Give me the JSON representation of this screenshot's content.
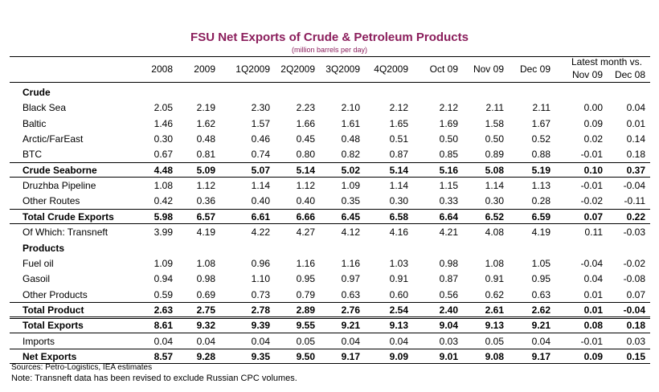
{
  "title": "FSU Net Exports of Crude & Petroleum Products",
  "subtitle": "(million barrels per day)",
  "latest_header": "Latest month vs.",
  "columns": [
    "2008",
    "2009",
    "1Q2009",
    "2Q2009",
    "3Q2009",
    "4Q2009",
    "Oct 09",
    "Nov 09",
    "Dec 09",
    "Nov 09",
    "Dec 08"
  ],
  "rows": [
    {
      "label": "Crude",
      "type": "section",
      "values": []
    },
    {
      "label": "Black Sea",
      "type": "data",
      "values": [
        "2.05",
        "2.19",
        "2.30",
        "2.23",
        "2.10",
        "2.12",
        "2.12",
        "2.11",
        "2.11",
        "0.00",
        "0.04"
      ]
    },
    {
      "label": "Baltic",
      "type": "data",
      "values": [
        "1.46",
        "1.62",
        "1.57",
        "1.66",
        "1.61",
        "1.65",
        "1.69",
        "1.58",
        "1.67",
        "0.09",
        "0.01"
      ]
    },
    {
      "label": "Arctic/FarEast",
      "type": "data",
      "values": [
        "0.30",
        "0.48",
        "0.46",
        "0.45",
        "0.48",
        "0.51",
        "0.50",
        "0.50",
        "0.52",
        "0.02",
        "0.14"
      ]
    },
    {
      "label": "BTC",
      "type": "data",
      "values": [
        "0.67",
        "0.81",
        "0.74",
        "0.80",
        "0.82",
        "0.87",
        "0.85",
        "0.89",
        "0.88",
        "-0.01",
        "0.18"
      ]
    },
    {
      "label": "Crude Seaborne",
      "type": "total",
      "values": [
        "4.48",
        "5.09",
        "5.07",
        "5.14",
        "5.02",
        "5.14",
        "5.16",
        "5.08",
        "5.19",
        "0.10",
        "0.37"
      ]
    },
    {
      "label": "Druzhba Pipeline",
      "type": "data",
      "values": [
        "1.08",
        "1.12",
        "1.14",
        "1.12",
        "1.09",
        "1.14",
        "1.15",
        "1.14",
        "1.13",
        "-0.01",
        "-0.04"
      ]
    },
    {
      "label": "Other Routes",
      "type": "data",
      "values": [
        "0.42",
        "0.36",
        "0.40",
        "0.40",
        "0.35",
        "0.30",
        "0.33",
        "0.30",
        "0.28",
        "-0.02",
        "-0.11"
      ]
    },
    {
      "label": "Total Crude Exports",
      "type": "total",
      "values": [
        "5.98",
        "6.57",
        "6.61",
        "6.66",
        "6.45",
        "6.58",
        "6.64",
        "6.52",
        "6.59",
        "0.07",
        "0.22"
      ]
    },
    {
      "label": "Of Which: Transneft",
      "type": "data",
      "values": [
        "3.99",
        "4.19",
        "4.22",
        "4.27",
        "4.12",
        "4.16",
        "4.21",
        "4.08",
        "4.19",
        "0.11",
        "-0.03"
      ]
    },
    {
      "label": "Products",
      "type": "section",
      "values": []
    },
    {
      "label": "Fuel oil",
      "type": "data",
      "values": [
        "1.09",
        "1.08",
        "0.96",
        "1.16",
        "1.16",
        "1.03",
        "0.98",
        "1.08",
        "1.05",
        "-0.04",
        "-0.02"
      ]
    },
    {
      "label": "Gasoil",
      "type": "data",
      "values": [
        "0.94",
        "0.98",
        "1.10",
        "0.95",
        "0.97",
        "0.91",
        "0.87",
        "0.91",
        "0.95",
        "0.04",
        "-0.08"
      ]
    },
    {
      "label": "Other Products",
      "type": "data",
      "values": [
        "0.59",
        "0.69",
        "0.73",
        "0.79",
        "0.63",
        "0.60",
        "0.56",
        "0.62",
        "0.63",
        "0.01",
        "0.07"
      ]
    },
    {
      "label": "Total Product",
      "type": "total",
      "values": [
        "2.63",
        "2.75",
        "2.78",
        "2.89",
        "2.76",
        "2.54",
        "2.40",
        "2.61",
        "2.62",
        "0.01",
        "-0.04"
      ]
    },
    {
      "label": "Total Exports",
      "type": "total",
      "values": [
        "8.61",
        "9.32",
        "9.39",
        "9.55",
        "9.21",
        "9.13",
        "9.04",
        "9.13",
        "9.21",
        "0.08",
        "0.18"
      ]
    },
    {
      "label": "Imports",
      "type": "data",
      "values": [
        "0.04",
        "0.04",
        "0.04",
        "0.05",
        "0.04",
        "0.04",
        "0.03",
        "0.05",
        "0.04",
        "-0.01",
        "0.03"
      ]
    },
    {
      "label": "Net Exports",
      "type": "total",
      "values": [
        "8.57",
        "9.28",
        "9.35",
        "9.50",
        "9.17",
        "9.09",
        "9.01",
        "9.08",
        "9.17",
        "0.09",
        "0.15"
      ]
    }
  ],
  "sources": "Sources: Petro-Logistics, IEA estimates",
  "note": "Note: Transneft data has been revised to exclude Russian CPC volumes.",
  "chart_data": {
    "type": "table",
    "title": "FSU Net Exports of Crude & Petroleum Products",
    "subtitle": "(million barrels per day)",
    "columns": [
      "2008",
      "2009",
      "1Q2009",
      "2Q2009",
      "3Q2009",
      "4Q2009",
      "Oct 09",
      "Nov 09",
      "Dec 09",
      "Latest month vs. Nov 09",
      "Latest month vs. Dec 08"
    ],
    "rows": [
      {
        "label": "Black Sea",
        "values": [
          2.05,
          2.19,
          2.3,
          2.23,
          2.1,
          2.12,
          2.12,
          2.11,
          2.11,
          0.0,
          0.04
        ]
      },
      {
        "label": "Baltic",
        "values": [
          1.46,
          1.62,
          1.57,
          1.66,
          1.61,
          1.65,
          1.69,
          1.58,
          1.67,
          0.09,
          0.01
        ]
      },
      {
        "label": "Arctic/FarEast",
        "values": [
          0.3,
          0.48,
          0.46,
          0.45,
          0.48,
          0.51,
          0.5,
          0.5,
          0.52,
          0.02,
          0.14
        ]
      },
      {
        "label": "BTC",
        "values": [
          0.67,
          0.81,
          0.74,
          0.8,
          0.82,
          0.87,
          0.85,
          0.89,
          0.88,
          -0.01,
          0.18
        ]
      },
      {
        "label": "Crude Seaborne",
        "values": [
          4.48,
          5.09,
          5.07,
          5.14,
          5.02,
          5.14,
          5.16,
          5.08,
          5.19,
          0.1,
          0.37
        ]
      },
      {
        "label": "Druzhba Pipeline",
        "values": [
          1.08,
          1.12,
          1.14,
          1.12,
          1.09,
          1.14,
          1.15,
          1.14,
          1.13,
          -0.01,
          -0.04
        ]
      },
      {
        "label": "Other Routes",
        "values": [
          0.42,
          0.36,
          0.4,
          0.4,
          0.35,
          0.3,
          0.33,
          0.3,
          0.28,
          -0.02,
          -0.11
        ]
      },
      {
        "label": "Total Crude Exports",
        "values": [
          5.98,
          6.57,
          6.61,
          6.66,
          6.45,
          6.58,
          6.64,
          6.52,
          6.59,
          0.07,
          0.22
        ]
      },
      {
        "label": "Of Which: Transneft",
        "values": [
          3.99,
          4.19,
          4.22,
          4.27,
          4.12,
          4.16,
          4.21,
          4.08,
          4.19,
          0.11,
          -0.03
        ]
      },
      {
        "label": "Fuel oil",
        "values": [
          1.09,
          1.08,
          0.96,
          1.16,
          1.16,
          1.03,
          0.98,
          1.08,
          1.05,
          -0.04,
          -0.02
        ]
      },
      {
        "label": "Gasoil",
        "values": [
          0.94,
          0.98,
          1.1,
          0.95,
          0.97,
          0.91,
          0.87,
          0.91,
          0.95,
          0.04,
          -0.08
        ]
      },
      {
        "label": "Other Products",
        "values": [
          0.59,
          0.69,
          0.73,
          0.79,
          0.63,
          0.6,
          0.56,
          0.62,
          0.63,
          0.01,
          0.07
        ]
      },
      {
        "label": "Total Product",
        "values": [
          2.63,
          2.75,
          2.78,
          2.89,
          2.76,
          2.54,
          2.4,
          2.61,
          2.62,
          0.01,
          -0.04
        ]
      },
      {
        "label": "Total Exports",
        "values": [
          8.61,
          9.32,
          9.39,
          9.55,
          9.21,
          9.13,
          9.04,
          9.13,
          9.21,
          0.08,
          0.18
        ]
      },
      {
        "label": "Imports",
        "values": [
          0.04,
          0.04,
          0.04,
          0.05,
          0.04,
          0.04,
          0.03,
          0.05,
          0.04,
          -0.01,
          0.03
        ]
      },
      {
        "label": "Net Exports",
        "values": [
          8.57,
          9.28,
          9.35,
          9.5,
          9.17,
          9.09,
          9.01,
          9.08,
          9.17,
          0.09,
          0.15
        ]
      }
    ]
  },
  "colors": {
    "title": "#8B1E5C",
    "text": "#000000",
    "rule": "#000000"
  }
}
